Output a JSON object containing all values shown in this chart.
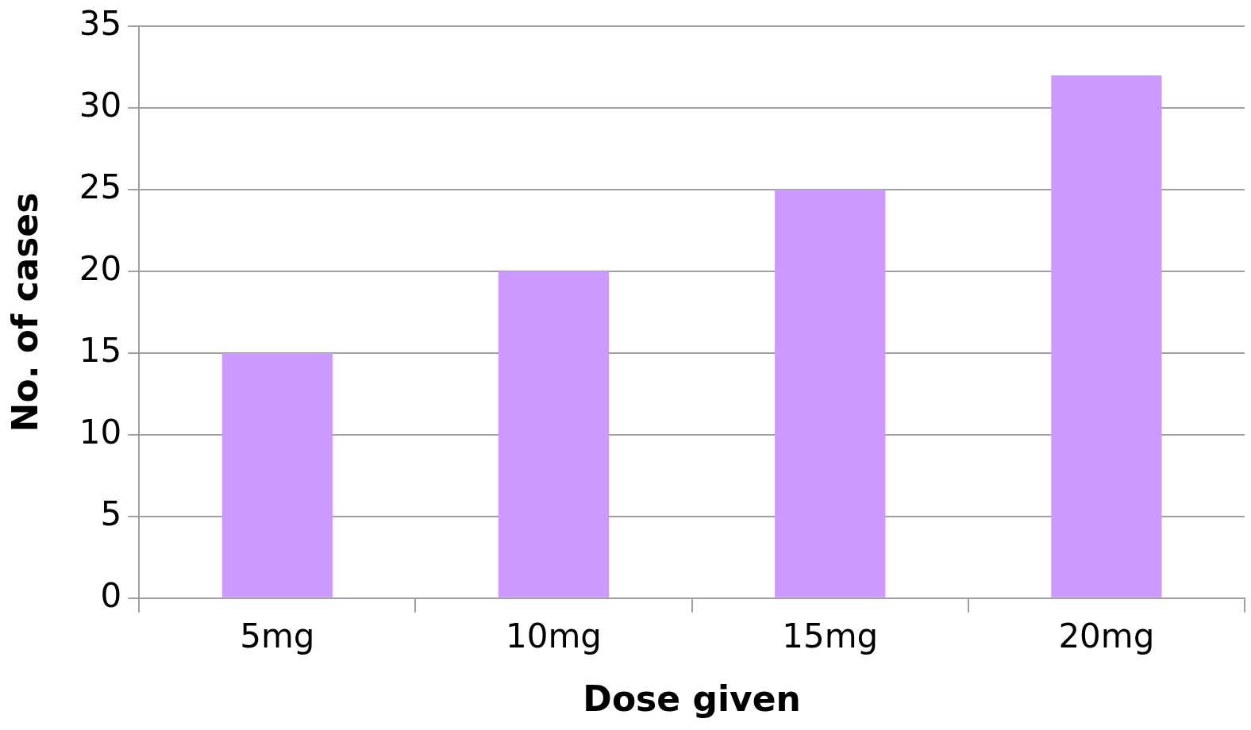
{
  "chart_data": {
    "type": "bar",
    "xlabel": "Dose given",
    "ylabel": "No. of cases",
    "categories": [
      "5mg",
      "10mg",
      "15mg",
      "20mg"
    ],
    "values": [
      15,
      20,
      25,
      32
    ],
    "color": "#cc99ff",
    "ylim": [
      0,
      35
    ],
    "yticks": [
      0,
      5,
      10,
      15,
      20,
      25,
      30,
      35
    ],
    "grid": "y",
    "legend": false
  }
}
